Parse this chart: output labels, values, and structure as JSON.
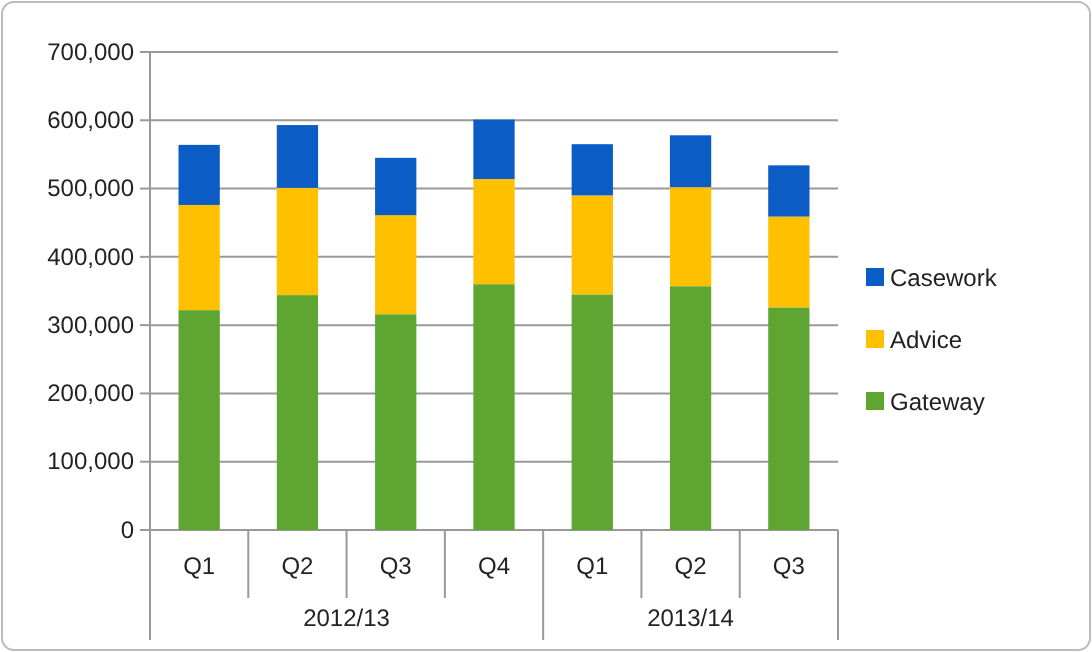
{
  "chart_data": {
    "type": "bar",
    "stacked": true,
    "categories": [
      "Q1",
      "Q2",
      "Q3",
      "Q4",
      "Q1",
      "Q2",
      "Q3"
    ],
    "series": [
      {
        "name": "Gateway",
        "color": "#5ea631",
        "values": [
          322000,
          344000,
          316000,
          360000,
          345000,
          357000,
          326000
        ]
      },
      {
        "name": "Advice",
        "color": "#ffc000",
        "values": [
          154000,
          157000,
          145000,
          154000,
          145000,
          145000,
          133000
        ]
      },
      {
        "name": "Casework",
        "color": "#0b5cc4",
        "values": [
          88000,
          92000,
          84000,
          87000,
          75000,
          76000,
          75000
        ]
      }
    ],
    "annotations": [
      "2012/13",
      "2013/14"
    ],
    "ylim": [
      0,
      700000
    ],
    "yticks": [
      {
        "value": 0,
        "label": "0"
      },
      {
        "value": 100000,
        "label": "100,000"
      },
      {
        "value": 200000,
        "label": "200,000"
      },
      {
        "value": 300000,
        "label": "300,000"
      },
      {
        "value": 400000,
        "label": "400,000"
      },
      {
        "value": 500000,
        "label": "500,000"
      },
      {
        "value": 600000,
        "label": "600,000"
      },
      {
        "value": 700000,
        "label": "700,000"
      }
    ],
    "grid": "y",
    "legend": "right"
  }
}
